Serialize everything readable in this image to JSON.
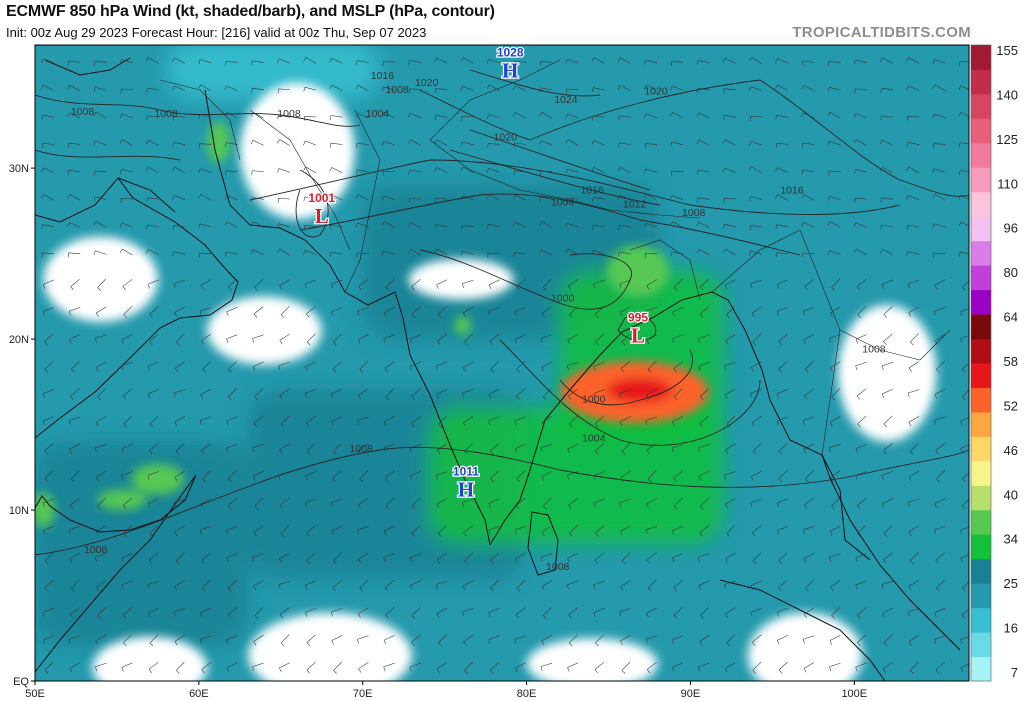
{
  "header": {
    "title": "ECMWF 850 hPa Wind (kt, shaded/barb), and MSLP (hPa, contour)",
    "subtitle": "Init: 00z Aug 29 2023   Forecast Hour: [216]   valid at 00z Thu, Sep 07 2023",
    "brand": "TROPICALTIDBITS.COM"
  },
  "axes": {
    "lon_labels": [
      "50E",
      "60E",
      "70E",
      "80E",
      "90E",
      "100E"
    ],
    "lon_values": [
      50,
      60,
      70,
      80,
      90,
      100
    ],
    "lat_labels": [
      "EQ",
      "10N",
      "20N",
      "30N"
    ],
    "lat_values": [
      0,
      10,
      20,
      30
    ]
  },
  "colorbar": {
    "labels": [
      "7",
      "16",
      "25",
      "34",
      "40",
      "46",
      "52",
      "58",
      "64",
      "80",
      "96",
      "110",
      "125",
      "140",
      "155"
    ],
    "colors": [
      "#a5f3f5",
      "#68dbe6",
      "#36bfd0",
      "#259aad",
      "#1a8194",
      "#12c03c",
      "#56c853",
      "#b6e06b",
      "#f6f58a",
      "#fed767",
      "#fda742",
      "#fc622a",
      "#e6161a",
      "#b20d14",
      "#790a0c",
      "#9c00c4",
      "#c23fd9",
      "#d97ee9",
      "#f3c1f2",
      "#fbc4dd",
      "#f79cbf",
      "#f07b9c",
      "#e95f7a",
      "#d84560",
      "#c12d4a",
      "#a01a36"
    ]
  },
  "pressure_systems": [
    {
      "type": "H",
      "value": "1028",
      "lon": 79,
      "lat": 36,
      "color": "#1f3fd6"
    },
    {
      "type": "L",
      "value": "1001",
      "lon": 67.5,
      "lat": 27.5,
      "color": "#d61f2c"
    },
    {
      "type": "L",
      "value": "995",
      "lon": 86.8,
      "lat": 20.5,
      "color": "#d61f2c"
    },
    {
      "type": "H",
      "value": "1011",
      "lon": 76.3,
      "lat": 11.5,
      "color": "#1f3fd6"
    }
  ],
  "isobar_labels": [
    {
      "text": "1016",
      "lon": 71.2,
      "lat": 35.2
    },
    {
      "text": "1020",
      "lon": 73.9,
      "lat": 34.8
    },
    {
      "text": "1008",
      "lon": 72.1,
      "lat": 34.4
    },
    {
      "text": "1004",
      "lon": 70.9,
      "lat": 33.0
    },
    {
      "text": "1008",
      "lon": 52.9,
      "lat": 33.1
    },
    {
      "text": "1008",
      "lon": 58.0,
      "lat": 33.0
    },
    {
      "text": "1008",
      "lon": 65.5,
      "lat": 33.0
    },
    {
      "text": "1024",
      "lon": 82.4,
      "lat": 33.8
    },
    {
      "text": "1020",
      "lon": 87.9,
      "lat": 34.3
    },
    {
      "text": "1020",
      "lon": 78.7,
      "lat": 31.6
    },
    {
      "text": "1016",
      "lon": 84.0,
      "lat": 28.5
    },
    {
      "text": "1004",
      "lon": 82.2,
      "lat": 27.8
    },
    {
      "text": "1012",
      "lon": 86.6,
      "lat": 27.7
    },
    {
      "text": "1008",
      "lon": 90.2,
      "lat": 27.2
    },
    {
      "text": "1016",
      "lon": 96.2,
      "lat": 28.5
    },
    {
      "text": "1000",
      "lon": 82.2,
      "lat": 22.2
    },
    {
      "text": "1000",
      "lon": 84.1,
      "lat": 16.3
    },
    {
      "text": "1004",
      "lon": 84.1,
      "lat": 14.0
    },
    {
      "text": "1008",
      "lon": 69.9,
      "lat": 13.4
    },
    {
      "text": "1008",
      "lon": 53.7,
      "lat": 7.5
    },
    {
      "text": "1008",
      "lon": 81.9,
      "lat": 6.5
    },
    {
      "text": "1008",
      "lon": 101.2,
      "lat": 19.2
    }
  ],
  "fields": {
    "background_wind": 20,
    "bands": [
      {
        "lon": [
          58,
          71
        ],
        "lat": [
          34,
          37.5
        ],
        "speed": 18
      },
      {
        "lon": [
          50,
          63
        ],
        "lat": [
          2,
          14
        ],
        "speed": 30
      },
      {
        "lon": [
          63,
          80
        ],
        "lat": [
          6,
          17
        ],
        "speed": 30
      },
      {
        "lon": [
          74,
          92
        ],
        "lat": [
          8,
          16
        ],
        "speed": 32
      },
      {
        "lon": [
          70,
          88
        ],
        "lat": [
          20,
          29
        ],
        "speed": 30
      },
      {
        "lon": [
          82,
          92
        ],
        "lat": [
          14,
          24
        ],
        "speed": 34
      }
    ],
    "calm_areas": [
      {
        "lon": 64,
        "lat": 20.5,
        "rx": 3.5,
        "ry": 2.0
      },
      {
        "lon": 76,
        "lat": 23.5,
        "rx": 3.2,
        "ry": 1.2
      },
      {
        "lon": 68,
        "lat": 1.5,
        "rx": 5.0,
        "ry": 2.5
      },
      {
        "lon": 57,
        "lat": 0.8,
        "rx": 3.5,
        "ry": 1.8
      },
      {
        "lon": 84,
        "lat": 1.0,
        "rx": 4.0,
        "ry": 1.5
      },
      {
        "lon": 66,
        "lat": 31,
        "rx": 3.5,
        "ry": 4.0
      },
      {
        "lon": 54,
        "lat": 23.5,
        "rx": 3.5,
        "ry": 2.5
      },
      {
        "lon": 97,
        "lat": 1.5,
        "rx": 3.5,
        "ry": 2.5
      },
      {
        "lon": 102,
        "lat": 18,
        "rx": 3.0,
        "ry": 4.0
      }
    ],
    "jet_cores": [
      {
        "lon": 86.6,
        "lat": 16.9,
        "rx": 4.5,
        "ry": 1.8,
        "speed": 52
      },
      {
        "lon": 86.9,
        "lat": 17.0,
        "rx": 2.0,
        "ry": 0.7,
        "speed": 58
      },
      {
        "lon": 57.5,
        "lat": 11.8,
        "rx": 1.6,
        "ry": 0.9,
        "speed": 37
      },
      {
        "lon": 55.3,
        "lat": 10.6,
        "rx": 1.5,
        "ry": 0.6,
        "speed": 36
      },
      {
        "lon": 50.5,
        "lat": 10.0,
        "rx": 0.7,
        "ry": 1.0,
        "speed": 36
      },
      {
        "lon": 61.2,
        "lat": 31.5,
        "rx": 0.7,
        "ry": 1.2,
        "speed": 36
      },
      {
        "lon": 86.8,
        "lat": 24.0,
        "rx": 1.9,
        "ry": 1.5,
        "speed": 36
      },
      {
        "lon": 76.1,
        "lat": 20.8,
        "rx": 0.5,
        "ry": 0.6,
        "speed": 35
      }
    ]
  }
}
